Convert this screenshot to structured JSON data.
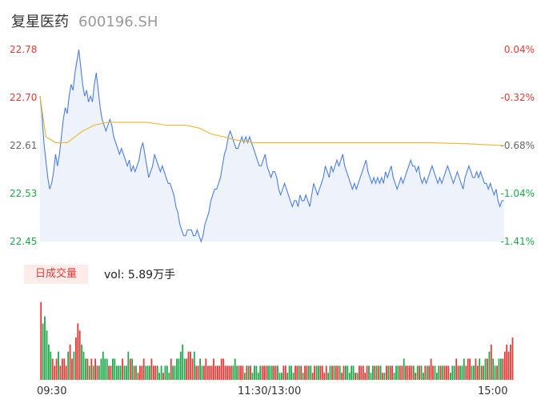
{
  "header": {
    "name": "复星医药",
    "code": "600196.SH"
  },
  "colors": {
    "up": "#e53935",
    "down": "#1ea84a",
    "price": "#4a7fe0",
    "avg": "#f0b428",
    "area": "#eef2fb"
  },
  "volume": {
    "badge": "日成交量",
    "label": "vol: 5.89万手"
  },
  "chart_data": {
    "type": "line",
    "title": "",
    "price_axis": {
      "labels": [
        "22.78",
        "22.70",
        "22.61",
        "22.53",
        "22.45"
      ],
      "ylim": [
        22.45,
        22.78
      ]
    },
    "pct_axis": {
      "labels": [
        "0.04%",
        "-0.32%",
        "-0.68%",
        "-1.04%",
        "-1.41%"
      ]
    },
    "x_ticks": [
      "09:30",
      "11:30/13:00",
      "15:00"
    ],
    "xlim": [
      0,
      240
    ],
    "series": [
      {
        "values": [
          [
            0,
            22.7
          ],
          [
            1,
            22.67
          ],
          [
            2,
            22.62
          ],
          [
            3,
            22.59
          ],
          [
            4,
            22.56
          ],
          [
            5,
            22.54
          ],
          [
            6,
            22.55
          ],
          [
            7,
            22.57
          ],
          [
            8,
            22.6
          ],
          [
            9,
            22.58
          ],
          [
            10,
            22.6
          ],
          [
            11,
            22.63
          ],
          [
            12,
            22.66
          ],
          [
            13,
            22.68
          ],
          [
            14,
            22.67
          ],
          [
            15,
            22.7
          ],
          [
            16,
            22.72
          ],
          [
            17,
            22.71
          ],
          [
            18,
            22.74
          ],
          [
            19,
            22.76
          ],
          [
            20,
            22.78
          ],
          [
            21,
            22.75
          ],
          [
            22,
            22.72
          ],
          [
            23,
            22.7
          ],
          [
            24,
            22.71
          ],
          [
            25,
            22.69
          ],
          [
            26,
            22.7
          ],
          [
            27,
            22.69
          ],
          [
            28,
            22.72
          ],
          [
            29,
            22.74
          ],
          [
            30,
            22.71
          ],
          [
            31,
            22.68
          ],
          [
            32,
            22.66
          ],
          [
            33,
            22.65
          ],
          [
            34,
            22.64
          ],
          [
            35,
            22.65
          ],
          [
            36,
            22.66
          ],
          [
            37,
            22.65
          ],
          [
            38,
            22.63
          ],
          [
            39,
            22.62
          ],
          [
            40,
            22.61
          ],
          [
            41,
            22.6
          ],
          [
            42,
            22.61
          ],
          [
            43,
            22.6
          ],
          [
            44,
            22.59
          ],
          [
            45,
            22.58
          ],
          [
            46,
            22.59
          ],
          [
            47,
            22.57
          ],
          [
            48,
            22.58
          ],
          [
            49,
            22.57
          ],
          [
            50,
            22.58
          ],
          [
            51,
            22.59
          ],
          [
            52,
            22.61
          ],
          [
            53,
            22.62
          ],
          [
            54,
            22.6
          ],
          [
            55,
            22.58
          ],
          [
            56,
            22.56
          ],
          [
            57,
            22.57
          ],
          [
            58,
            22.58
          ],
          [
            59,
            22.6
          ],
          [
            60,
            22.59
          ],
          [
            61,
            22.58
          ],
          [
            62,
            22.57
          ],
          [
            63,
            22.58
          ],
          [
            64,
            22.57
          ],
          [
            65,
            22.56
          ],
          [
            66,
            22.55
          ],
          [
            67,
            22.55
          ],
          [
            68,
            22.54
          ],
          [
            69,
            22.53
          ],
          [
            70,
            22.51
          ],
          [
            71,
            22.5
          ],
          [
            72,
            22.48
          ],
          [
            73,
            22.47
          ],
          [
            74,
            22.46
          ],
          [
            75,
            22.46
          ],
          [
            76,
            22.47
          ],
          [
            77,
            22.47
          ],
          [
            78,
            22.47
          ],
          [
            79,
            22.46
          ],
          [
            80,
            22.46
          ],
          [
            81,
            22.47
          ],
          [
            82,
            22.46
          ],
          [
            83,
            22.45
          ],
          [
            84,
            22.46
          ],
          [
            85,
            22.48
          ],
          [
            86,
            22.49
          ],
          [
            87,
            22.5
          ],
          [
            88,
            22.52
          ],
          [
            89,
            22.53
          ],
          [
            90,
            22.54
          ],
          [
            91,
            22.54
          ],
          [
            92,
            22.55
          ],
          [
            93,
            22.56
          ],
          [
            94,
            22.58
          ],
          [
            95,
            22.6
          ],
          [
            96,
            22.61
          ],
          [
            97,
            22.63
          ],
          [
            98,
            22.64
          ],
          [
            99,
            22.63
          ],
          [
            100,
            22.62
          ],
          [
            101,
            22.61
          ],
          [
            102,
            22.61
          ],
          [
            103,
            22.62
          ],
          [
            104,
            22.63
          ],
          [
            105,
            22.62
          ],
          [
            106,
            22.63
          ],
          [
            107,
            22.62
          ],
          [
            108,
            22.63
          ],
          [
            109,
            22.62
          ],
          [
            110,
            22.61
          ],
          [
            111,
            22.6
          ],
          [
            112,
            22.59
          ],
          [
            113,
            22.58
          ],
          [
            114,
            22.58
          ],
          [
            115,
            22.59
          ],
          [
            116,
            22.6
          ],
          [
            117,
            22.58
          ],
          [
            118,
            22.57
          ],
          [
            119,
            22.56
          ],
          [
            120,
            22.57
          ],
          [
            121,
            22.57
          ],
          [
            122,
            22.56
          ],
          [
            123,
            22.54
          ],
          [
            124,
            22.53
          ],
          [
            125,
            22.54
          ],
          [
            126,
            22.55
          ],
          [
            127,
            22.54
          ],
          [
            128,
            22.53
          ],
          [
            129,
            22.52
          ],
          [
            130,
            22.51
          ],
          [
            131,
            22.52
          ],
          [
            132,
            22.52
          ],
          [
            133,
            22.51
          ],
          [
            134,
            22.53
          ],
          [
            135,
            22.52
          ],
          [
            136,
            22.52
          ],
          [
            137,
            22.53
          ],
          [
            138,
            22.52
          ],
          [
            139,
            22.51
          ],
          [
            140,
            22.53
          ],
          [
            141,
            22.55
          ],
          [
            142,
            22.54
          ],
          [
            143,
            22.53
          ],
          [
            144,
            22.54
          ],
          [
            145,
            22.55
          ],
          [
            146,
            22.56
          ],
          [
            147,
            22.58
          ],
          [
            148,
            22.57
          ],
          [
            149,
            22.56
          ],
          [
            150,
            22.58
          ],
          [
            151,
            22.57
          ],
          [
            152,
            22.58
          ],
          [
            153,
            22.59
          ],
          [
            154,
            22.58
          ],
          [
            155,
            22.59
          ],
          [
            156,
            22.6
          ],
          [
            157,
            22.58
          ],
          [
            158,
            22.57
          ],
          [
            159,
            22.56
          ],
          [
            160,
            22.55
          ],
          [
            161,
            22.54
          ],
          [
            162,
            22.55
          ],
          [
            163,
            22.54
          ],
          [
            164,
            22.55
          ],
          [
            165,
            22.56
          ],
          [
            166,
            22.57
          ],
          [
            167,
            22.58
          ],
          [
            168,
            22.59
          ],
          [
            169,
            22.57
          ],
          [
            170,
            22.56
          ],
          [
            171,
            22.55
          ],
          [
            172,
            22.56
          ],
          [
            173,
            22.55
          ],
          [
            174,
            22.56
          ],
          [
            175,
            22.55
          ],
          [
            176,
            22.56
          ],
          [
            177,
            22.55
          ],
          [
            178,
            22.57
          ],
          [
            179,
            22.56
          ],
          [
            180,
            22.57
          ],
          [
            181,
            22.58
          ],
          [
            182,
            22.56
          ],
          [
            183,
            22.55
          ],
          [
            184,
            22.54
          ],
          [
            185,
            22.55
          ],
          [
            186,
            22.56
          ],
          [
            187,
            22.55
          ],
          [
            188,
            22.56
          ],
          [
            189,
            22.57
          ],
          [
            190,
            22.58
          ],
          [
            191,
            22.59
          ],
          [
            192,
            22.58
          ],
          [
            193,
            22.58
          ],
          [
            194,
            22.57
          ],
          [
            195,
            22.58
          ],
          [
            196,
            22.56
          ],
          [
            197,
            22.55
          ],
          [
            198,
            22.56
          ],
          [
            199,
            22.55
          ],
          [
            200,
            22.56
          ],
          [
            201,
            22.57
          ],
          [
            202,
            22.58
          ],
          [
            203,
            22.57
          ],
          [
            204,
            22.56
          ],
          [
            205,
            22.55
          ],
          [
            206,
            22.56
          ],
          [
            207,
            22.55
          ],
          [
            208,
            22.56
          ],
          [
            209,
            22.57
          ],
          [
            210,
            22.58
          ],
          [
            211,
            22.57
          ],
          [
            212,
            22.56
          ],
          [
            213,
            22.55
          ],
          [
            214,
            22.56
          ],
          [
            215,
            22.57
          ],
          [
            216,
            22.56
          ],
          [
            217,
            22.55
          ],
          [
            218,
            22.54
          ],
          [
            219,
            22.56
          ],
          [
            220,
            22.57
          ],
          [
            221,
            22.58
          ],
          [
            222,
            22.57
          ],
          [
            223,
            22.56
          ],
          [
            224,
            22.56
          ],
          [
            225,
            22.57
          ],
          [
            226,
            22.56
          ],
          [
            227,
            22.57
          ],
          [
            228,
            22.56
          ],
          [
            229,
            22.55
          ],
          [
            230,
            22.55
          ],
          [
            231,
            22.54
          ],
          [
            232,
            22.55
          ],
          [
            233,
            22.54
          ],
          [
            234,
            22.53
          ],
          [
            235,
            22.54
          ],
          [
            236,
            22.52
          ],
          [
            237,
            22.51
          ],
          [
            238,
            22.52
          ],
          [
            239,
            22.52
          ]
        ]
      },
      {
        "values": [
          [
            0,
            22.7
          ],
          [
            3,
            22.63
          ],
          [
            8,
            22.62
          ],
          [
            14,
            22.62
          ],
          [
            18,
            22.63
          ],
          [
            22,
            22.64
          ],
          [
            28,
            22.65
          ],
          [
            35,
            22.655
          ],
          [
            45,
            22.655
          ],
          [
            55,
            22.655
          ],
          [
            65,
            22.65
          ],
          [
            75,
            22.65
          ],
          [
            82,
            22.645
          ],
          [
            88,
            22.635
          ],
          [
            95,
            22.63
          ],
          [
            100,
            22.625
          ],
          [
            110,
            22.62
          ],
          [
            130,
            22.62
          ],
          [
            160,
            22.62
          ],
          [
            180,
            22.62
          ],
          [
            200,
            22.62
          ],
          [
            220,
            22.618
          ],
          [
            239,
            22.615
          ]
        ]
      }
    ],
    "volume": [
      11,
      8,
      9,
      7,
      5,
      4,
      3,
      2,
      3,
      4,
      2,
      3,
      3,
      2,
      4,
      5,
      3,
      4,
      6,
      8,
      7,
      5,
      4,
      3,
      3,
      2,
      3,
      2,
      3,
      2,
      2,
      3,
      4,
      3,
      3,
      2,
      2,
      3,
      3,
      2,
      2,
      2,
      3,
      2,
      2,
      4,
      3,
      3,
      2,
      2,
      1,
      2,
      2,
      3,
      2,
      2,
      2,
      3,
      2,
      2,
      2,
      1,
      2,
      1,
      2,
      2,
      1,
      3,
      2,
      2,
      3,
      3,
      4,
      5,
      3,
      3,
      4,
      4,
      3,
      4,
      2,
      2,
      3,
      2,
      2,
      3,
      2,
      2,
      2,
      3,
      2,
      2,
      2,
      3,
      3,
      2,
      2,
      2,
      2,
      2,
      3,
      2,
      2,
      2,
      2,
      1,
      2,
      2,
      2,
      1,
      2,
      2,
      1,
      2,
      2,
      2,
      2,
      2,
      2,
      2,
      2,
      2,
      2,
      1,
      1,
      2,
      2,
      1,
      2,
      2,
      1,
      2,
      2,
      2,
      2,
      1,
      2,
      2,
      2,
      2,
      1,
      2,
      2,
      2,
      2,
      2,
      1,
      2,
      1,
      2,
      2,
      2,
      2,
      2,
      2,
      1,
      2,
      2,
      2,
      1,
      2,
      2,
      1,
      1,
      2,
      2,
      2,
      1,
      2,
      2,
      1,
      2,
      2,
      2,
      2,
      2,
      1,
      1,
      2,
      2,
      2,
      2,
      1,
      2,
      2,
      2,
      2,
      3,
      2,
      2,
      2,
      2,
      2,
      1,
      2,
      2,
      2,
      1,
      2,
      2,
      2,
      3,
      2,
      2,
      1,
      2,
      2,
      2,
      2,
      2,
      2,
      1,
      2,
      2,
      3,
      2,
      2,
      2,
      3,
      2,
      3,
      3,
      2,
      2,
      3,
      2,
      3,
      2,
      2,
      3,
      3,
      4,
      5,
      3,
      2,
      2,
      3,
      3,
      3,
      4,
      5,
      4,
      5,
      6
    ]
  }
}
